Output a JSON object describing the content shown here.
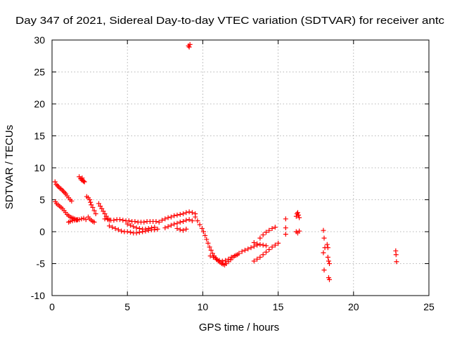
{
  "chart_data": {
    "type": "scatter",
    "title": "Day 347 of 2021, Sidereal Day-to-day VTEC variation (SDTVAR) for receiver antc",
    "xlabel": "GPS time / hours",
    "ylabel": "SDTVAR / TECUs",
    "xlim": [
      0,
      25
    ],
    "ylim": [
      -10,
      30
    ],
    "xticks": [
      0,
      5,
      10,
      15,
      20,
      25
    ],
    "yticks": [
      -10,
      -5,
      0,
      5,
      10,
      15,
      20,
      25,
      30
    ],
    "xtick_labels": [
      "0",
      "5",
      "10",
      "15",
      "20",
      "25"
    ],
    "ytick_labels": [
      "-10",
      "-5",
      "0",
      "5",
      "10",
      "15",
      "20",
      "25",
      "30"
    ],
    "grid": true,
    "marker": "plus",
    "color": "#ff0000",
    "series": [
      {
        "name": "SDTVAR",
        "x": [
          0.2,
          0.28,
          0.36,
          0.44,
          0.52,
          0.6,
          0.68,
          0.76,
          0.84,
          0.92,
          1.0,
          1.1,
          1.2,
          1.3,
          0.22,
          0.3,
          0.4,
          0.5,
          0.6,
          0.7,
          0.8,
          0.9,
          1.0,
          1.1,
          1.2,
          1.3,
          1.4,
          1.5,
          1.6,
          1.7,
          1.1,
          1.2,
          1.35,
          1.5,
          1.65,
          1.8,
          1.95,
          2.1,
          2.25,
          1.8,
          1.9,
          1.95,
          2.0,
          2.05,
          2.1,
          2.15,
          2.3,
          2.4,
          2.5,
          2.55,
          2.6,
          2.7,
          2.8,
          2.9,
          2.4,
          2.5,
          2.6,
          2.7,
          2.8,
          3.1,
          3.2,
          3.3,
          3.4,
          3.5,
          3.6,
          3.7,
          3.8,
          3.5,
          3.7,
          3.9,
          4.1,
          4.3,
          4.5,
          4.7,
          4.9,
          5.1,
          5.3,
          5.5,
          5.7,
          5.9,
          6.1,
          6.3,
          6.5,
          6.7,
          6.9,
          7.1,
          3.8,
          4.0,
          4.2,
          4.4,
          4.6,
          4.8,
          5.0,
          5.2,
          5.4,
          5.6,
          5.8,
          6.0,
          6.2,
          6.4,
          6.6,
          6.8,
          7.0,
          5.0,
          5.2,
          5.4,
          5.6,
          5.8,
          6.0,
          6.2,
          6.4,
          6.6,
          6.8,
          7.3,
          7.5,
          7.7,
          7.9,
          8.1,
          8.3,
          8.5,
          8.7,
          8.9,
          9.1,
          9.3,
          9.5,
          7.5,
          7.7,
          7.9,
          8.1,
          8.3,
          8.5,
          8.7,
          8.9,
          9.1,
          9.3,
          8.3,
          8.5,
          8.7,
          8.9,
          9.05,
          9.15,
          9.1,
          9.5,
          9.65,
          9.8,
          9.95,
          10.05,
          10.15,
          10.25,
          10.35,
          10.45,
          10.55,
          10.65,
          10.75,
          10.85,
          10.95,
          11.05,
          11.15,
          11.25,
          11.35,
          11.45,
          11.55,
          11.7,
          11.85,
          12.0,
          12.2,
          12.4,
          12.6,
          12.8,
          13.0,
          13.2,
          13.4,
          13.6,
          10.5,
          10.7,
          10.9,
          11.1,
          11.3,
          11.5,
          11.7,
          11.9,
          12.1,
          12.3,
          13.4,
          13.6,
          13.8,
          14.0,
          14.2,
          14.4,
          14.6,
          14.8,
          15.0,
          13.8,
          14.0,
          14.2,
          14.4,
          14.6,
          14.8,
          13.4,
          13.6,
          13.8,
          14.0,
          14.2,
          15.5,
          15.5,
          15.5,
          16.2,
          16.25,
          16.3,
          16.35,
          16.4,
          16.2,
          16.3,
          16.4,
          18.0,
          18.05,
          18.1,
          18.0,
          18.05,
          18.25,
          18.3,
          18.35,
          18.4,
          18.3,
          18.35,
          18.4,
          22.8,
          22.82,
          22.85
        ],
        "y": [
          7.8,
          7.4,
          7.2,
          7.0,
          6.8,
          6.7,
          6.5,
          6.3,
          6.1,
          5.9,
          5.6,
          5.3,
          5.0,
          4.8,
          4.7,
          4.4,
          4.2,
          4.0,
          3.8,
          3.6,
          3.3,
          3.0,
          2.7,
          2.5,
          2.3,
          2.2,
          2.1,
          2.0,
          1.9,
          1.9,
          1.5,
          1.6,
          1.7,
          1.8,
          1.8,
          1.9,
          2.0,
          2.1,
          1.9,
          8.6,
          8.3,
          8.1,
          8.4,
          8.0,
          7.9,
          7.8,
          5.5,
          5.3,
          5.0,
          4.6,
          4.2,
          3.8,
          3.3,
          2.8,
          2.3,
          2.0,
          1.8,
          1.6,
          1.5,
          4.4,
          4.0,
          3.6,
          3.2,
          2.8,
          2.4,
          2.1,
          1.8,
          2.0,
          1.9,
          1.8,
          1.8,
          1.9,
          1.9,
          1.8,
          1.7,
          1.7,
          1.6,
          1.6,
          1.5,
          1.5,
          1.5,
          1.6,
          1.6,
          1.6,
          1.6,
          1.5,
          0.9,
          0.7,
          0.5,
          0.3,
          0.1,
          0.0,
          0.0,
          -0.1,
          -0.2,
          -0.2,
          -0.1,
          0.0,
          0.1,
          0.2,
          0.3,
          0.3,
          0.4,
          1.2,
          1.0,
          0.8,
          0.6,
          0.5,
          0.4,
          0.4,
          0.5,
          0.6,
          0.7,
          1.8,
          2.0,
          2.2,
          2.3,
          2.5,
          2.6,
          2.7,
          2.8,
          3.0,
          3.1,
          3.0,
          2.8,
          0.6,
          0.8,
          1.0,
          1.2,
          1.3,
          1.5,
          1.6,
          1.8,
          1.9,
          1.7,
          0.5,
          0.3,
          0.2,
          0.4,
          29.1,
          29.3,
          28.9,
          2.3,
          1.7,
          1.1,
          0.5,
          0.0,
          -0.6,
          -1.2,
          -1.8,
          -2.4,
          -2.9,
          -3.4,
          -3.8,
          -4.1,
          -4.4,
          -4.6,
          -4.8,
          -5.0,
          -5.1,
          -5.2,
          -5.0,
          -4.7,
          -4.4,
          -4.0,
          -3.7,
          -3.4,
          -3.1,
          -2.9,
          -2.7,
          -2.5,
          -2.3,
          -2.1,
          -3.8,
          -4.0,
          -4.3,
          -4.5,
          -4.6,
          -4.5,
          -4.3,
          -4.0,
          -3.8,
          -3.6,
          -4.6,
          -4.3,
          -4.0,
          -3.6,
          -3.2,
          -2.8,
          -2.4,
          -2.1,
          -1.8,
          -1.0,
          -0.5,
          -0.1,
          0.2,
          0.5,
          0.7,
          -1.7,
          -1.9,
          -2.0,
          -2.1,
          -2.2,
          2.0,
          0.6,
          -0.4,
          2.4,
          2.8,
          3.0,
          2.6,
          2.2,
          0.0,
          -0.2,
          0.1,
          0.2,
          -1.0,
          -2.5,
          -3.3,
          -6.0,
          -2.0,
          -2.5,
          -4.6,
          -5.0,
          -4.0,
          -7.2,
          -7.5,
          -3.0,
          -3.6,
          -4.7
        ]
      }
    ]
  }
}
